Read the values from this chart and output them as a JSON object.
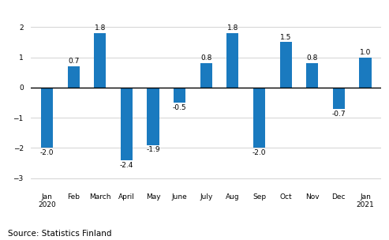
{
  "categories": [
    "Jan\n2020",
    "Feb",
    "March",
    "April",
    "May",
    "June",
    "July",
    "Aug",
    "Sep",
    "Oct",
    "Nov",
    "Dec",
    "Jan\n2021"
  ],
  "values": [
    -2.0,
    0.7,
    1.8,
    -2.4,
    -1.9,
    -0.5,
    0.8,
    1.8,
    -2.0,
    1.5,
    0.8,
    -0.7,
    1.0
  ],
  "bar_color": "#1a7abf",
  "ylim": [
    -3.3,
    2.5
  ],
  "yticks": [
    -3,
    -2,
    -1,
    0,
    1,
    2
  ],
  "source_text": "Source: Statistics Finland",
  "tick_fontsize": 6.5,
  "source_fontsize": 7.5,
  "bar_label_fontsize": 6.5,
  "bar_width": 0.45,
  "grid_color": "#cccccc"
}
